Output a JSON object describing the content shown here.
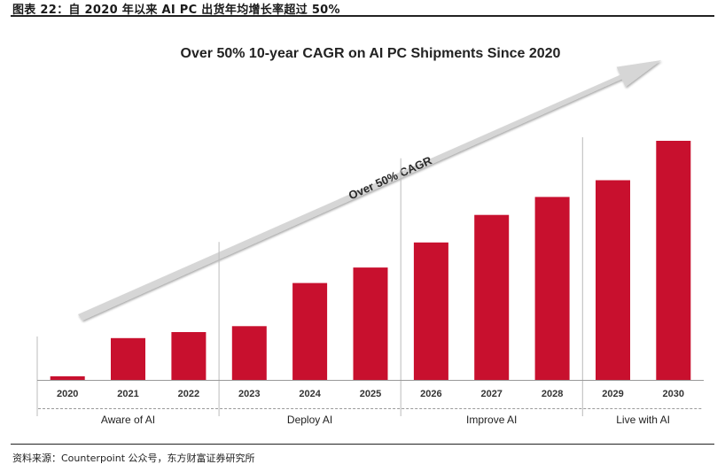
{
  "figure": {
    "caption": "图表 22：自 2020 年以来 AI PC 出货年均增长率超过 50%",
    "source": "资料来源：Counterpoint 公众号，东方财富证券研究所"
  },
  "chart_data": {
    "type": "bar",
    "title": "Over 50% 10-year CAGR on AI PC Shipments Since 2020",
    "annotation": "Over 50% CAGR",
    "categories": [
      "2020",
      "2021",
      "2022",
      "2023",
      "2024",
      "2025",
      "2026",
      "2027",
      "2028",
      "2029",
      "2030"
    ],
    "values": [
      1.5,
      17.5,
      20,
      22.5,
      40.5,
      47,
      57.5,
      69,
      76.5,
      83.5,
      100
    ],
    "ylim": [
      0,
      100
    ],
    "bar_color": "#c8102e",
    "phases": [
      {
        "label": "Aware of AI",
        "start": "2020",
        "end": "2022"
      },
      {
        "label": "Deploy AI",
        "start": "2023",
        "end": "2025"
      },
      {
        "label": "Improve AI",
        "start": "2026",
        "end": "2028"
      },
      {
        "label": "Live with AI",
        "start": "2029",
        "end": "2030"
      }
    ],
    "grid": false,
    "legend": "none"
  }
}
